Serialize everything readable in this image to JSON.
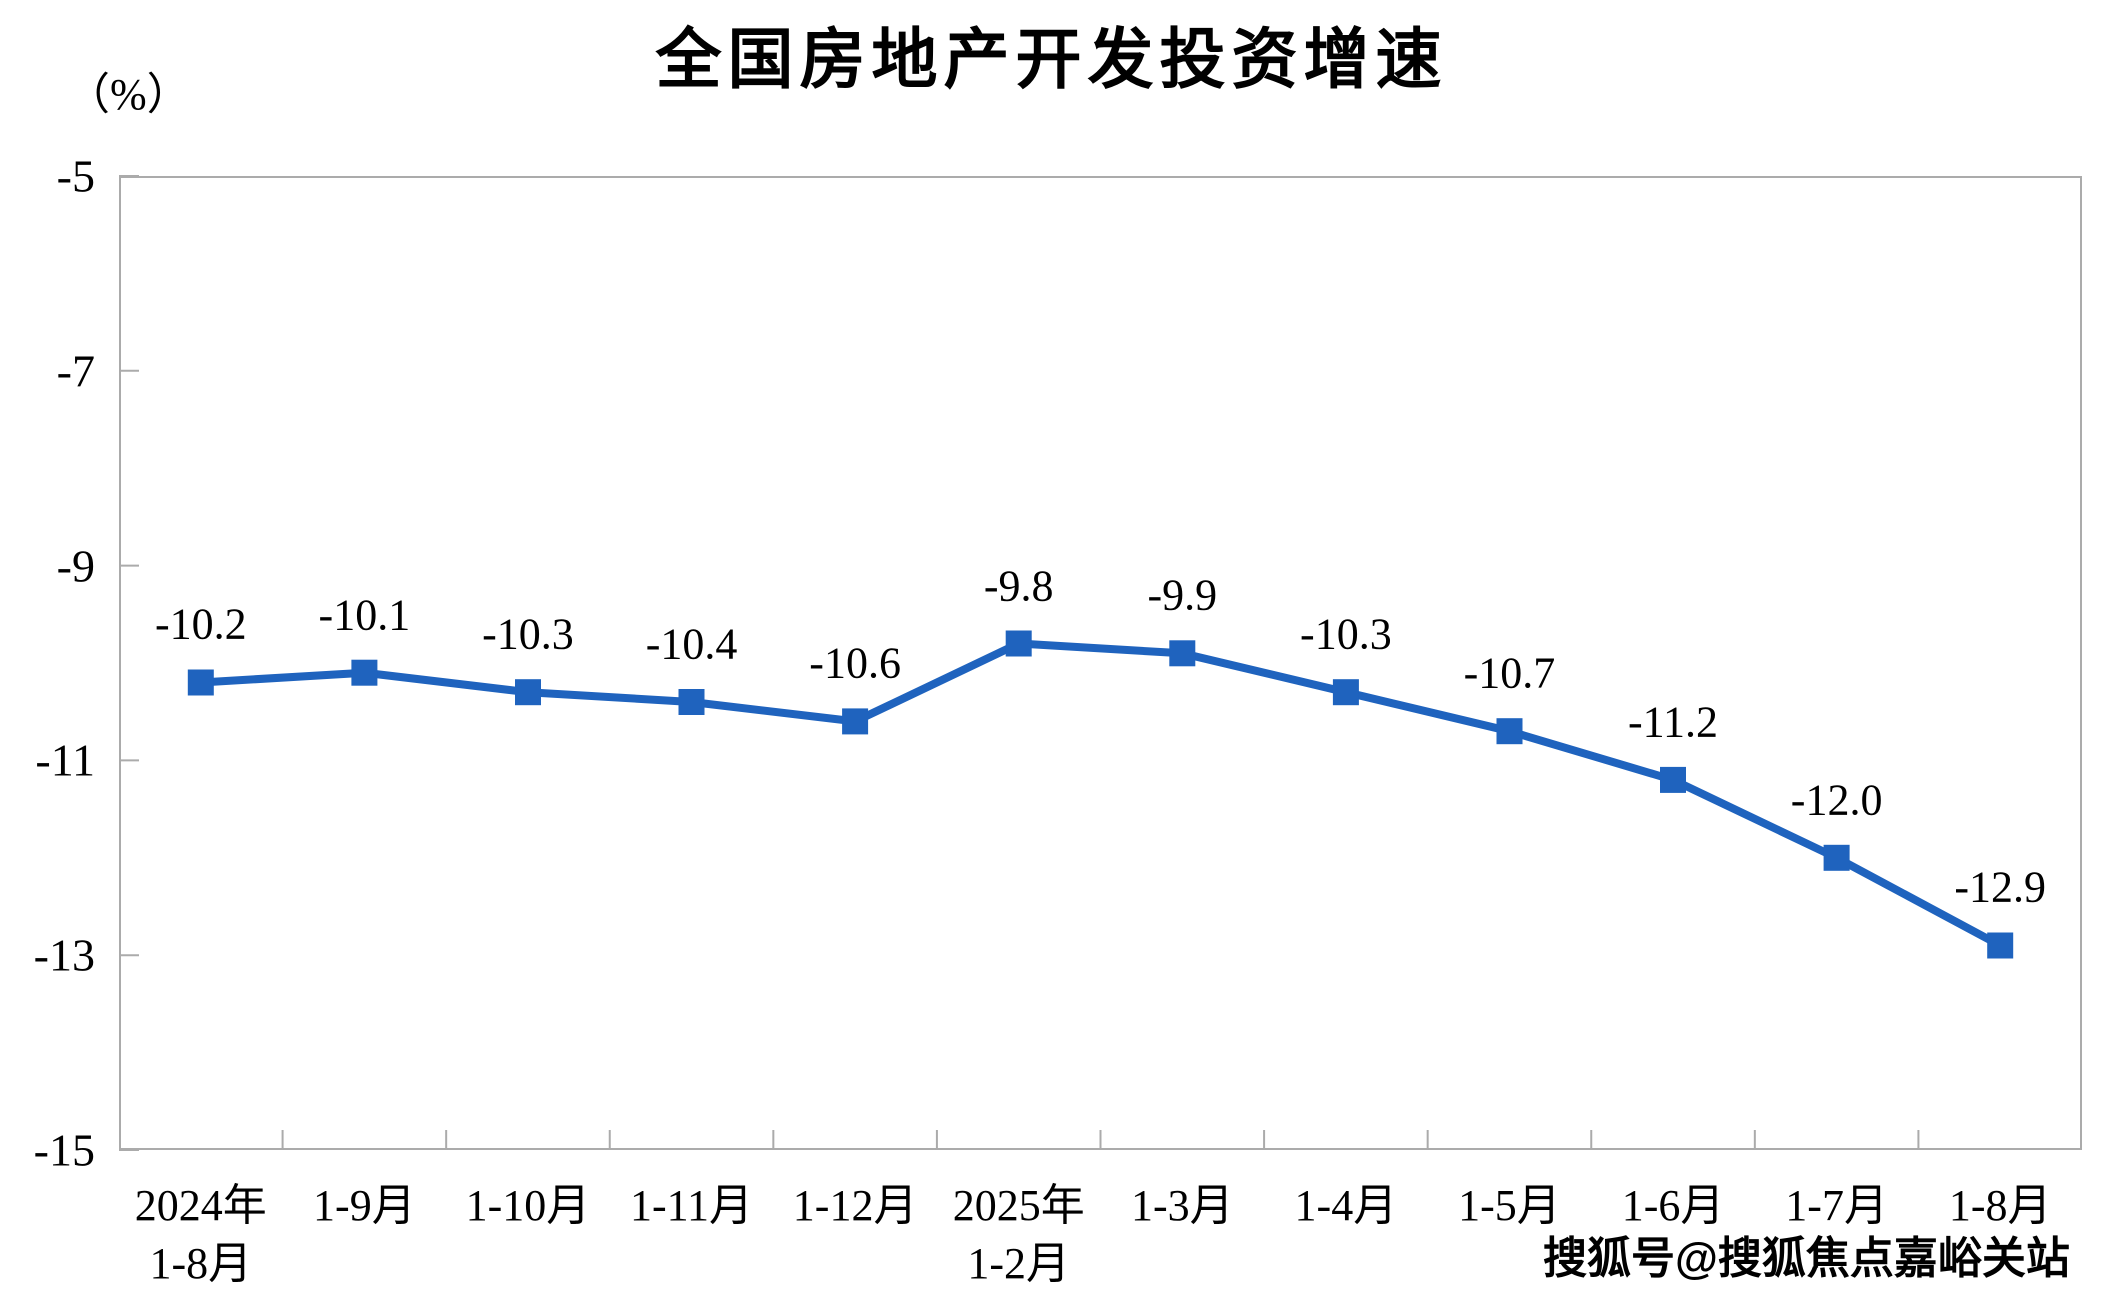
{
  "chart_data": {
    "type": "line",
    "title": "全国房地产开发投资增速",
    "unit_label": "（%）",
    "categories": [
      [
        "2024年",
        "1-8月"
      ],
      [
        "1-9月"
      ],
      [
        "1-10月"
      ],
      [
        "1-11月"
      ],
      [
        "1-12月"
      ],
      [
        "2025年",
        "1-2月"
      ],
      [
        "1-3月"
      ],
      [
        "1-4月"
      ],
      [
        "1-5月"
      ],
      [
        "1-6月"
      ],
      [
        "1-7月"
      ],
      [
        "1-8月"
      ]
    ],
    "series": [
      {
        "name": "全国房地产开发投资增速",
        "values": [
          -10.2,
          -10.1,
          -10.3,
          -10.4,
          -10.6,
          -9.8,
          -9.9,
          -10.3,
          -10.7,
          -11.2,
          -12.0,
          -12.9
        ],
        "labels": [
          "-10.2",
          "-10.1",
          "-10.3",
          "-10.4",
          "-10.6",
          "-9.8",
          "-9.9",
          "-10.3",
          "-10.7",
          "-11.2",
          "-12.0",
          "-12.9"
        ]
      }
    ],
    "ylim": [
      -15,
      -5
    ],
    "yticks": [
      -5,
      -7,
      -9,
      -11,
      -13,
      -15
    ],
    "ytick_labels": [
      "-5",
      "-7",
      "-9",
      "-11",
      "-13",
      "-15"
    ],
    "grid": false,
    "legend": "none",
    "line_color": "#1f63be",
    "marker": "square",
    "axis_color": "#ababab",
    "label_color": "#000000"
  },
  "watermark": {
    "text": "搜狐号@搜狐焦点嘉峪关站"
  }
}
